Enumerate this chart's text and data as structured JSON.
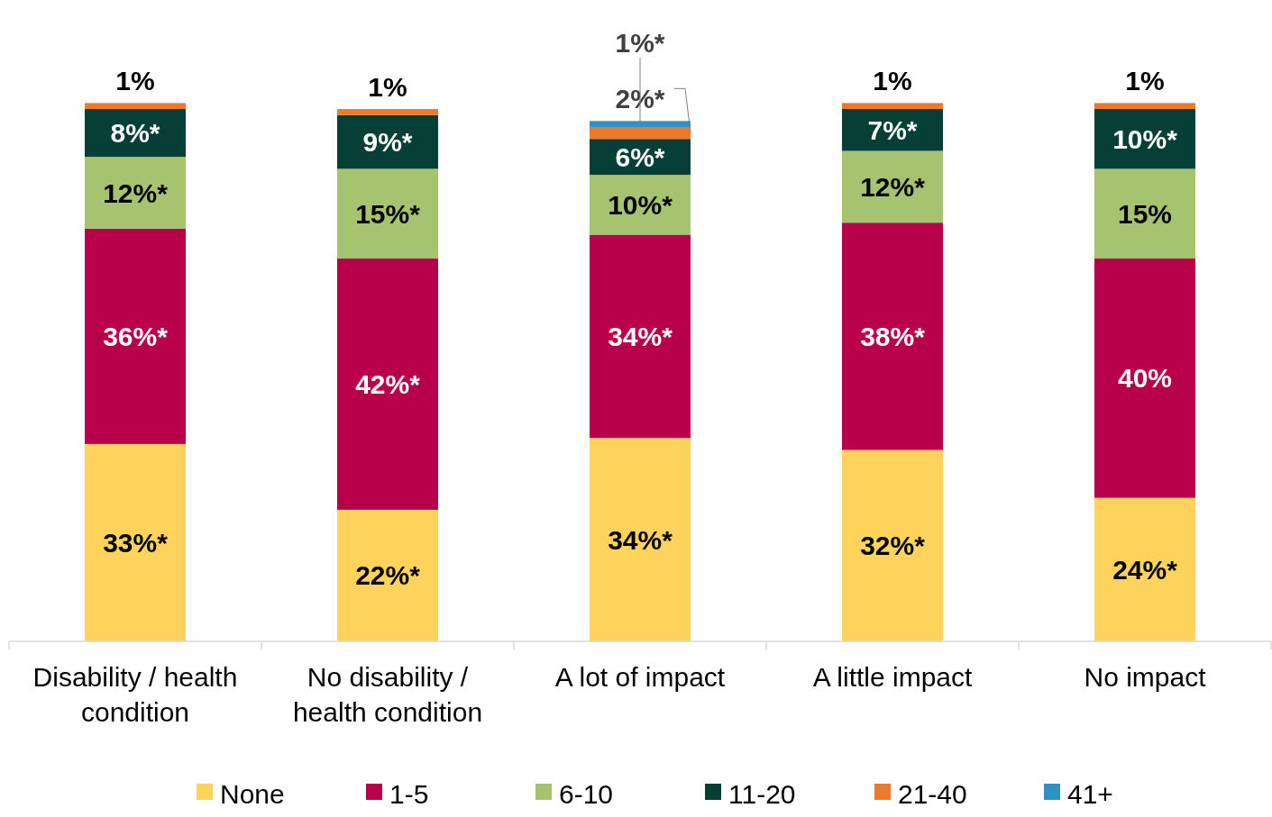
{
  "chart_data": {
    "type": "bar",
    "stacked": true,
    "legend": "bottom",
    "categories": [
      "Disability / health condition",
      "No disability / health condition",
      "A lot of impact",
      "A little impact",
      "No impact"
    ],
    "series": [
      {
        "name": "None",
        "color": "#fdd35c",
        "values": [
          33,
          22,
          34,
          32,
          24
        ],
        "value_labels": [
          "33%*",
          "22%*",
          "34%*",
          "32%*",
          "24%*"
        ]
      },
      {
        "name": "1-5",
        "color": "#b8004b",
        "values": [
          36,
          42,
          34,
          38,
          40
        ],
        "value_labels": [
          "36%*",
          "42%*",
          "34%*",
          "38%*",
          "40%"
        ]
      },
      {
        "name": "6-10",
        "color": "#a6c36f",
        "values": [
          12,
          15,
          10,
          12,
          15
        ],
        "value_labels": [
          "12%*",
          "15%*",
          "10%*",
          "12%*",
          "15%"
        ]
      },
      {
        "name": "11-20",
        "color": "#053f35",
        "values": [
          8,
          9,
          6,
          7,
          10
        ],
        "value_labels": [
          "8%*",
          "9%*",
          "6%*",
          "7%*",
          "10%*"
        ]
      },
      {
        "name": "21-40",
        "color": "#ec7a2d",
        "values": [
          1,
          1,
          2,
          1,
          1
        ],
        "value_labels": [
          "1%",
          "1%",
          "2%*",
          "1%",
          "1%"
        ]
      },
      {
        "name": "41+",
        "color": "#2e93c3",
        "values": [
          null,
          null,
          1,
          null,
          null
        ],
        "value_labels": [
          null,
          null,
          "1%*",
          null,
          null
        ]
      }
    ]
  }
}
